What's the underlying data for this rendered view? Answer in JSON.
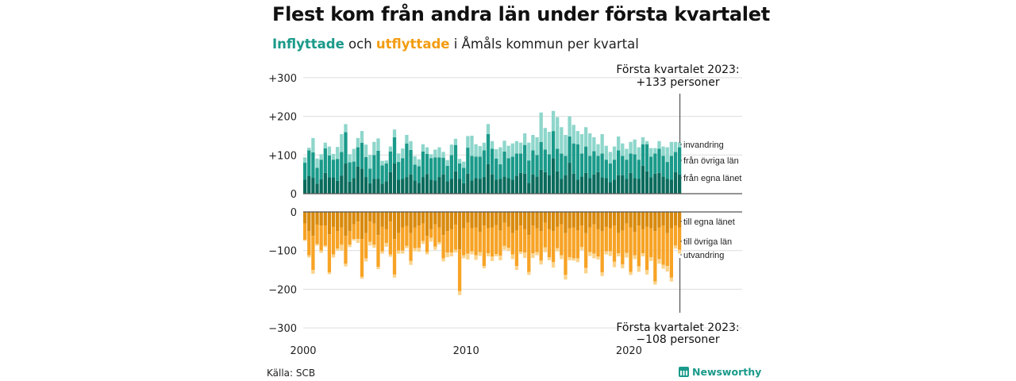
{
  "title": "Flest kom från andra län under första kvartalet",
  "subtitle": {
    "part1": "Inflyttade",
    "part2": " och ",
    "part3": "utflyttade",
    "part4": " i Åmåls kommun per kvartal"
  },
  "source": "Källa: SCB",
  "logo": "Newsworthy",
  "colors": {
    "in_own": "#0b6b5c",
    "in_other": "#1a9a8a",
    "in_immig": "#8ed6cb",
    "out_own": "#d98a0e",
    "out_other": "#f7a325",
    "out_emig": "#fbd38b",
    "grid": "#dddddd",
    "axis": "#555555",
    "text": "#222222"
  },
  "chart_data": {
    "type": "bar",
    "title": "Flest kom från andra län under första kvartalet",
    "subtitle": "Inflyttade och utflyttade i Åmåls kommun per kvartal",
    "x_start": "2000 Q1",
    "x_end": "2023 Q1",
    "x_tick_labels": [
      "2000",
      "2010",
      "2020"
    ],
    "y_top_ticks": [
      "+300",
      "+200",
      "+100",
      "0"
    ],
    "y_bottom_ticks": [
      "0",
      "−100",
      "−200",
      "−300"
    ],
    "ylim_top": [
      0,
      300
    ],
    "ylim_bottom": [
      -300,
      0
    ],
    "legend_top": [
      "invandring",
      "från övriga län",
      "från egna länet"
    ],
    "legend_bottom": [
      "till egna länet",
      "till övriga län",
      "utvandring"
    ],
    "annotation_top": {
      "line1": "Första kvartalet 2023:",
      "line2": "+133 personer"
    },
    "annotation_bottom": {
      "line1": "Första kvartalet 2023:",
      "line2": "−108 personer"
    },
    "series_in": [
      {
        "name": "från egna länet",
        "values": [
          36,
          46,
          41,
          26,
          37,
          54,
          42,
          42,
          33,
          47,
          78,
          31,
          40,
          70,
          65,
          43,
          27,
          38,
          38,
          26,
          32,
          56,
          78,
          36,
          38,
          43,
          50,
          34,
          28,
          43,
          51,
          36,
          34,
          43,
          50,
          32,
          38,
          58,
          38,
          27,
          52,
          34,
          40,
          38,
          43,
          76,
          50,
          36,
          38,
          44,
          40,
          36,
          46,
          54,
          52,
          28,
          50,
          44,
          62,
          56,
          48,
          92,
          58,
          38,
          48,
          80,
          52,
          36,
          44,
          54,
          40,
          50,
          56,
          42,
          40,
          30,
          36,
          48,
          48,
          38,
          54,
          40,
          38,
          72,
          58,
          42,
          52,
          54,
          44,
          38,
          36,
          56,
          50
        ]
      },
      {
        "name": "från övriga län",
        "values": [
          44,
          66,
          66,
          41,
          51,
          63,
          57,
          46,
          57,
          61,
          81,
          50,
          43,
          50,
          67,
          52,
          38,
          62,
          73,
          47,
          46,
          53,
          68,
          46,
          54,
          87,
          63,
          41,
          43,
          66,
          52,
          56,
          60,
          51,
          43,
          40,
          62,
          68,
          40,
          40,
          67,
          64,
          56,
          58,
          69,
          78,
          66,
          55,
          38,
          65,
          52,
          60,
          58,
          50,
          74,
          58,
          62,
          56,
          72,
          58,
          54,
          70,
          58,
          66,
          50,
          68,
          78,
          92,
          60,
          68,
          58,
          60,
          42,
          62,
          48,
          48,
          52,
          64,
          50,
          50,
          50,
          62,
          50,
          56,
          70,
          54,
          52,
          62,
          54,
          44,
          62,
          52,
          70
        ]
      },
      {
        "name": "invandring",
        "values": [
          14,
          7,
          37,
          24,
          14,
          15,
          23,
          15,
          31,
          46,
          21,
          21,
          33,
          24,
          30,
          32,
          35,
          34,
          32,
          12,
          8,
          13,
          20,
          22,
          25,
          22,
          23,
          22,
          18,
          19,
          17,
          10,
          20,
          26,
          15,
          15,
          27,
          16,
          12,
          16,
          30,
          52,
          32,
          27,
          20,
          26,
          20,
          24,
          44,
          28,
          32,
          34,
          32,
          28,
          30,
          46,
          40,
          46,
          76,
          56,
          58,
          52,
          82,
          68,
          54,
          52,
          48,
          34,
          50,
          50,
          58,
          36,
          30,
          50,
          36,
          30,
          34,
          36,
          32,
          28,
          30,
          38,
          32,
          18,
          8,
          22,
          14,
          20,
          24,
          38,
          36,
          26,
          13
        ]
      }
    ],
    "series_out": [
      {
        "name": "till egna länet",
        "values": [
          -30,
          -50,
          -62,
          -33,
          -35,
          -35,
          -58,
          -38,
          -50,
          -40,
          -62,
          -50,
          -32,
          -25,
          -70,
          -55,
          -25,
          -30,
          -60,
          -38,
          -45,
          -25,
          -70,
          -55,
          -40,
          -36,
          -55,
          -40,
          -35,
          -30,
          -62,
          -45,
          -32,
          -40,
          -60,
          -50,
          -45,
          -33,
          -97,
          -42,
          -28,
          -42,
          -40,
          -52,
          -35,
          -42,
          -40,
          -34,
          -48,
          -28,
          -38,
          -55,
          -48,
          -35,
          -45,
          -60,
          -35,
          -42,
          -50,
          -28,
          -45,
          -50,
          -38,
          -32,
          -55,
          -42,
          -40,
          -48,
          -35,
          -55,
          -40,
          -32,
          -45,
          -50,
          -38,
          -42,
          -35,
          -55,
          -48,
          -30,
          -40,
          -52,
          -35,
          -45,
          -38,
          -42,
          -50,
          -40,
          -35,
          -55,
          -42,
          -35,
          -40
        ]
      },
      {
        "name": "till övriga län",
        "values": [
          -42,
          -62,
          -88,
          -50,
          -65,
          -52,
          -98,
          -72,
          -45,
          -45,
          -72,
          -35,
          -38,
          -45,
          -98,
          -65,
          -52,
          -55,
          -82,
          -64,
          -35,
          -85,
          -92,
          -45,
          -60,
          -52,
          -72,
          -54,
          -58,
          -45,
          -42,
          -22,
          -58,
          -38,
          -60,
          -55,
          -60,
          -65,
          -108,
          -70,
          -80,
          -60,
          -72,
          -52,
          -105,
          -65,
          -75,
          -75,
          -65,
          -60,
          -55,
          -55,
          -92,
          -68,
          -60,
          -95,
          -72,
          -62,
          -76,
          -64,
          -72,
          -80,
          -56,
          -80,
          -108,
          -75,
          -80,
          -72,
          -56,
          -90,
          -64,
          -76,
          -70,
          -106,
          -64,
          -60,
          -94,
          -52,
          -88,
          -76,
          -115,
          -60,
          -106,
          -62,
          -112,
          -75,
          -130,
          -82,
          -102,
          -85,
          -128,
          -52,
          -58
        ]
      },
      {
        "name": "utvandring",
        "values": [
          -3,
          -6,
          -10,
          -4,
          -6,
          -4,
          -5,
          -8,
          -5,
          -15,
          -7,
          -6,
          -4,
          -10,
          -5,
          -8,
          -10,
          -8,
          -6,
          -6,
          -10,
          -6,
          -8,
          -8,
          -8,
          -6,
          -10,
          -8,
          -10,
          -8,
          -6,
          -10,
          -8,
          -6,
          -8,
          -12,
          -10,
          -7,
          -10,
          -8,
          -15,
          -8,
          -12,
          -10,
          -6,
          -8,
          -12,
          -6,
          -12,
          -10,
          -8,
          -12,
          -10,
          -6,
          -14,
          -8,
          -12,
          -8,
          -10,
          -12,
          -8,
          -14,
          -8,
          -10,
          -12,
          -8,
          -6,
          -10,
          -8,
          -14,
          -10,
          -12,
          -8,
          -10,
          -8,
          -12,
          -14,
          -8,
          -10,
          -12,
          -8,
          -10,
          -14,
          -8,
          -12,
          -10,
          -8,
          -12,
          -10,
          -14,
          -10,
          -8,
          -10
        ]
      }
    ]
  }
}
